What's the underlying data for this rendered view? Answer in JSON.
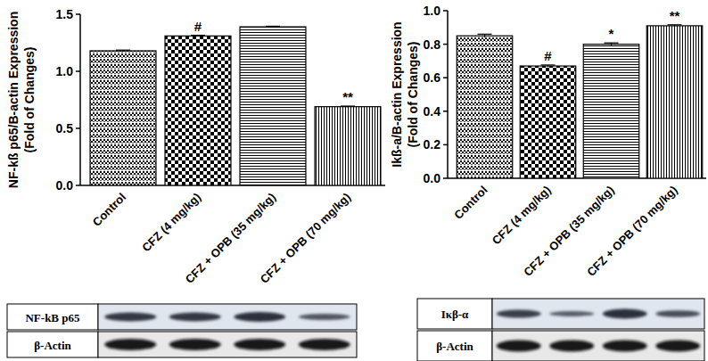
{
  "chart_data": [
    {
      "type": "bar",
      "ylabel": [
        "NF-kß p65/B-actin Expression",
        "(Fold of Changes)"
      ],
      "categories": [
        "Control",
        "CFZ (4 mg/kg)",
        "CFZ + OPB (35 mg/kg)",
        "CFZ + OPB (70 mg/kg)"
      ],
      "values": [
        1.18,
        1.31,
        1.39,
        0.69
      ],
      "errors": [
        0.006,
        0.006,
        0.005,
        0.005
      ],
      "annotations": [
        null,
        "#",
        null,
        "**"
      ],
      "color": "#000000",
      "ylim": [
        0,
        1.5
      ],
      "yticks": [
        {
          "value": 0,
          "label": "0.0"
        },
        {
          "value": 0.5,
          "label": "0.5"
        },
        {
          "value": 1,
          "label": "1.0"
        },
        {
          "value": 1.5,
          "label": "1.5"
        }
      ],
      "grid": false
    },
    {
      "type": "bar",
      "ylabel": [
        "Ikß-a/B-actin Expression",
        "(Fold of Changes)"
      ],
      "categories": [
        "Control",
        "CFZ (4 mg/kg)",
        "CFZ + OPB (35 mg/kg)",
        "CFZ + OPB (70 mg/kg)"
      ],
      "values": [
        0.85,
        0.67,
        0.8,
        0.91
      ],
      "errors": [
        0.01,
        0.006,
        0.008,
        0.006
      ],
      "annotations": [
        null,
        "#",
        "*",
        "**"
      ],
      "color": "#000000",
      "ylim": [
        0,
        1.0
      ],
      "yticks": [
        {
          "value": 0,
          "label": "0.0"
        },
        {
          "value": 0.2,
          "label": "0.2"
        },
        {
          "value": 0.4,
          "label": "0.4"
        },
        {
          "value": 0.6,
          "label": "0.6"
        },
        {
          "value": 0.8,
          "label": "0.8"
        },
        {
          "value": 1,
          "label": "1.0"
        }
      ],
      "grid": false
    }
  ],
  "blots": [
    {
      "labels": [
        "NF-kB p65",
        "β-Actin"
      ]
    },
    {
      "labels": [
        "Iκβ-α",
        "β-Actin"
      ]
    }
  ]
}
